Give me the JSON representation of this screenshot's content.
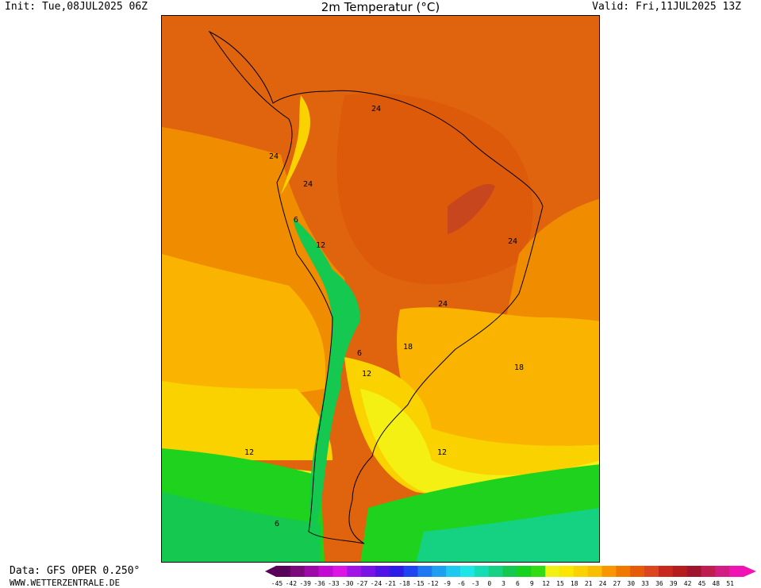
{
  "header": {
    "init": "Init: Tue,08JUL2025 06Z",
    "title": "2m Temperatur (°C)",
    "valid": "Valid: Fri,11JUL2025 13Z"
  },
  "footer": {
    "source": "Data: GFS OPER 0.250°",
    "site": "WWW.WETTERZENTRALE.DE"
  },
  "map": {
    "contour_labels": [
      "24",
      "24",
      "24",
      "6",
      "12",
      "24",
      "24",
      "18",
      "6",
      "12",
      "18",
      "12",
      "12",
      "6"
    ]
  },
  "legend": {
    "ticks": [
      "-45",
      "-42",
      "-39",
      "-36",
      "-33",
      "-30",
      "-27",
      "-24",
      "-21",
      "-18",
      "-15",
      "-12",
      "-9",
      "-6",
      "-3",
      "0",
      "3",
      "6",
      "9",
      "12",
      "15",
      "18",
      "21",
      "24",
      "27",
      "30",
      "33",
      "36",
      "39",
      "42",
      "45",
      "48",
      "51"
    ],
    "colors": [
      "#58005a",
      "#7a0a7a",
      "#9e0aa8",
      "#c30ad0",
      "#dc14e6",
      "#a014e6",
      "#7814e6",
      "#5014e6",
      "#2c1ee6",
      "#1e46f0",
      "#1e78f0",
      "#1ea0f0",
      "#1ec8f0",
      "#1ee6e6",
      "#14dcb4",
      "#14d282",
      "#14c850",
      "#14d21e",
      "#32dc14",
      "#f0f014",
      "#fae600",
      "#fad200",
      "#fabe00",
      "#fa9600",
      "#f07800",
      "#e65a0a",
      "#dc461e",
      "#c8281e",
      "#b41e1e",
      "#a0142d",
      "#be1e50",
      "#d21e82",
      "#f014b4"
    ]
  }
}
